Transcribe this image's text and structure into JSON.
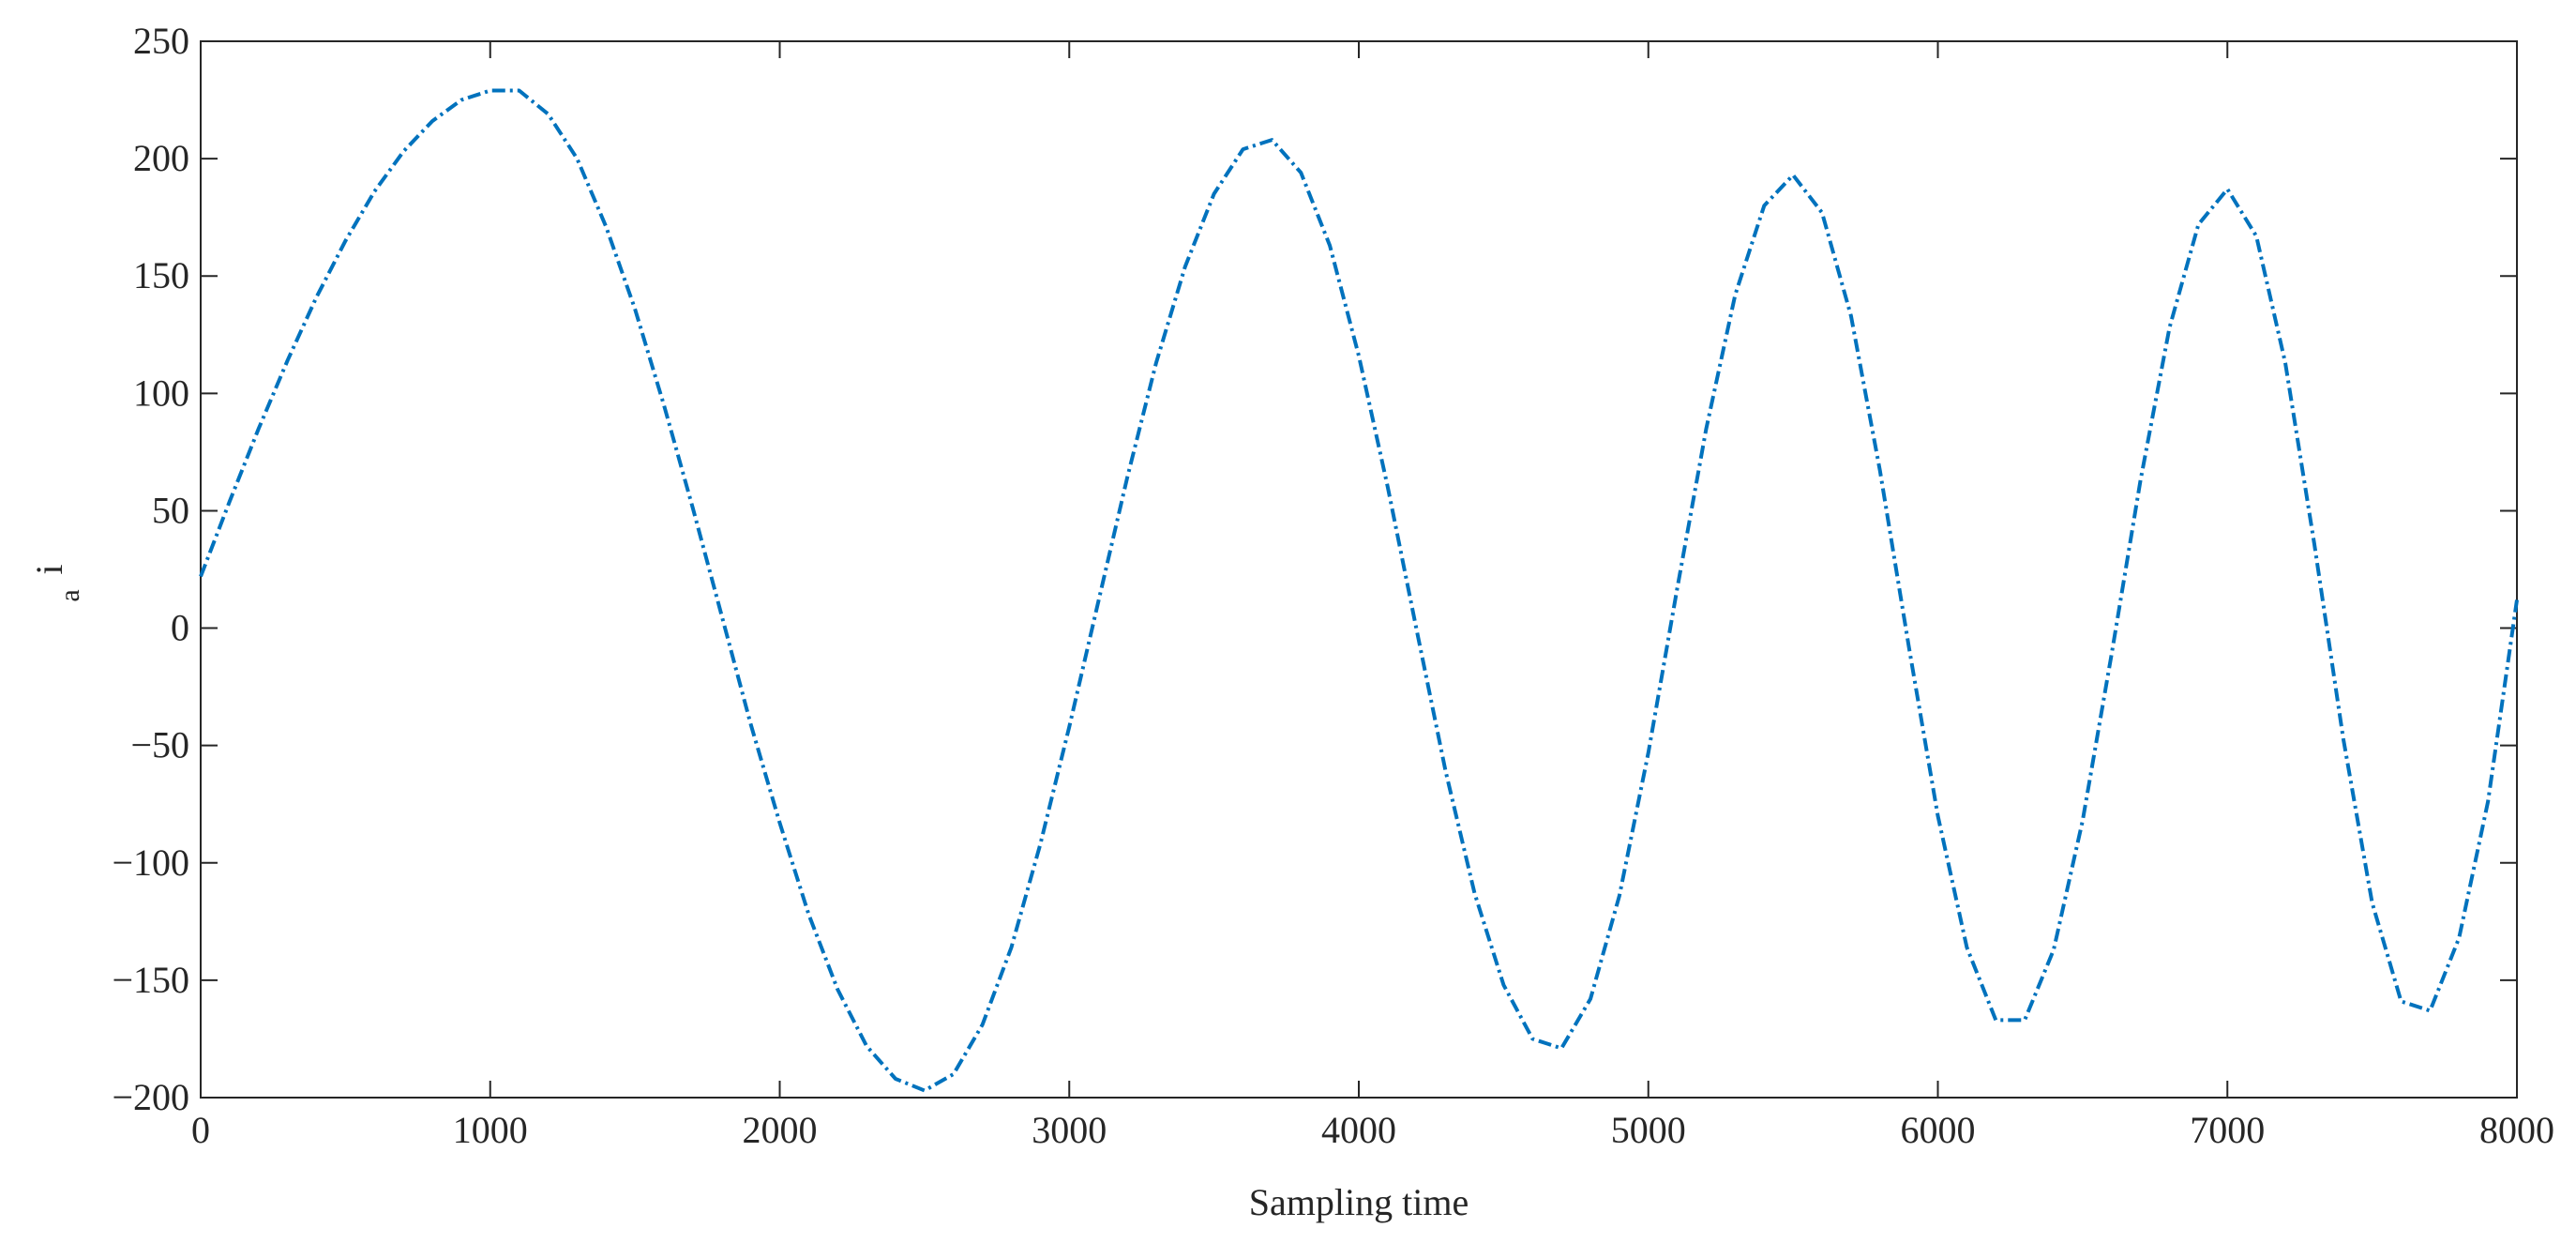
{
  "chart_data": {
    "type": "line",
    "xlabel": "Sampling time",
    "ylabel": {
      "text": "i",
      "subscript": "a"
    },
    "xlim": [
      0,
      8000
    ],
    "ylim": [
      -200,
      250
    ],
    "xticks": [
      0,
      1000,
      2000,
      3000,
      4000,
      5000,
      6000,
      7000,
      8000
    ],
    "yticks": [
      {
        "value": -200,
        "label": "−200"
      },
      {
        "value": -150,
        "label": "−150"
      },
      {
        "value": -100,
        "label": "−100"
      },
      {
        "value": -50,
        "label": "−50"
      },
      0,
      50,
      100,
      150,
      200,
      250
    ],
    "x": [
      0,
      100,
      200,
      300,
      400,
      500,
      600,
      700,
      800,
      900,
      1000,
      1100,
      1200,
      1300,
      1400,
      1500,
      1600,
      1700,
      1800,
      1900,
      2000,
      2100,
      2200,
      2300,
      2400,
      2500,
      2600,
      2700,
      2800,
      2900,
      3000,
      3100,
      3200,
      3300,
      3400,
      3500,
      3600,
      3700,
      3800,
      3900,
      4000,
      4100,
      4200,
      4300,
      4400,
      4500,
      4600,
      4700,
      4800,
      4900,
      5000,
      5100,
      5200,
      5300,
      5400,
      5500,
      5600,
      5700,
      5800,
      5900,
      6000,
      6100,
      6200,
      6300,
      6400,
      6500,
      6600,
      6700,
      6800,
      6900,
      7000,
      7100,
      7200,
      7300,
      7400,
      7500,
      7600,
      7700,
      7800,
      7900,
      8000
    ],
    "series": [
      {
        "color": "#0072bd",
        "values": [
          22,
          54,
          85,
          114,
          141,
          165,
          186,
          203,
          216,
          225,
          229,
          229,
          219,
          200,
          171,
          136,
          95,
          51,
          5,
          -41,
          -83,
          -122,
          -154,
          -178,
          -192,
          -197,
          -190,
          -169,
          -136,
          -92,
          -42,
          11,
          64,
          113,
          154,
          185,
          204,
          208,
          194,
          163,
          116,
          60,
          -1,
          -61,
          -113,
          -152,
          -175,
          -179,
          -158,
          -114,
          -53,
          17,
          85,
          142,
          180,
          193,
          177,
          133,
          67,
          -8,
          -80,
          -136,
          -167,
          -167,
          -137,
          -82,
          -11,
          63,
          128,
          172,
          187,
          167,
          113,
          36,
          -47,
          -117,
          -159,
          -163,
          -132,
          -74,
          12
        ]
      }
    ]
  }
}
